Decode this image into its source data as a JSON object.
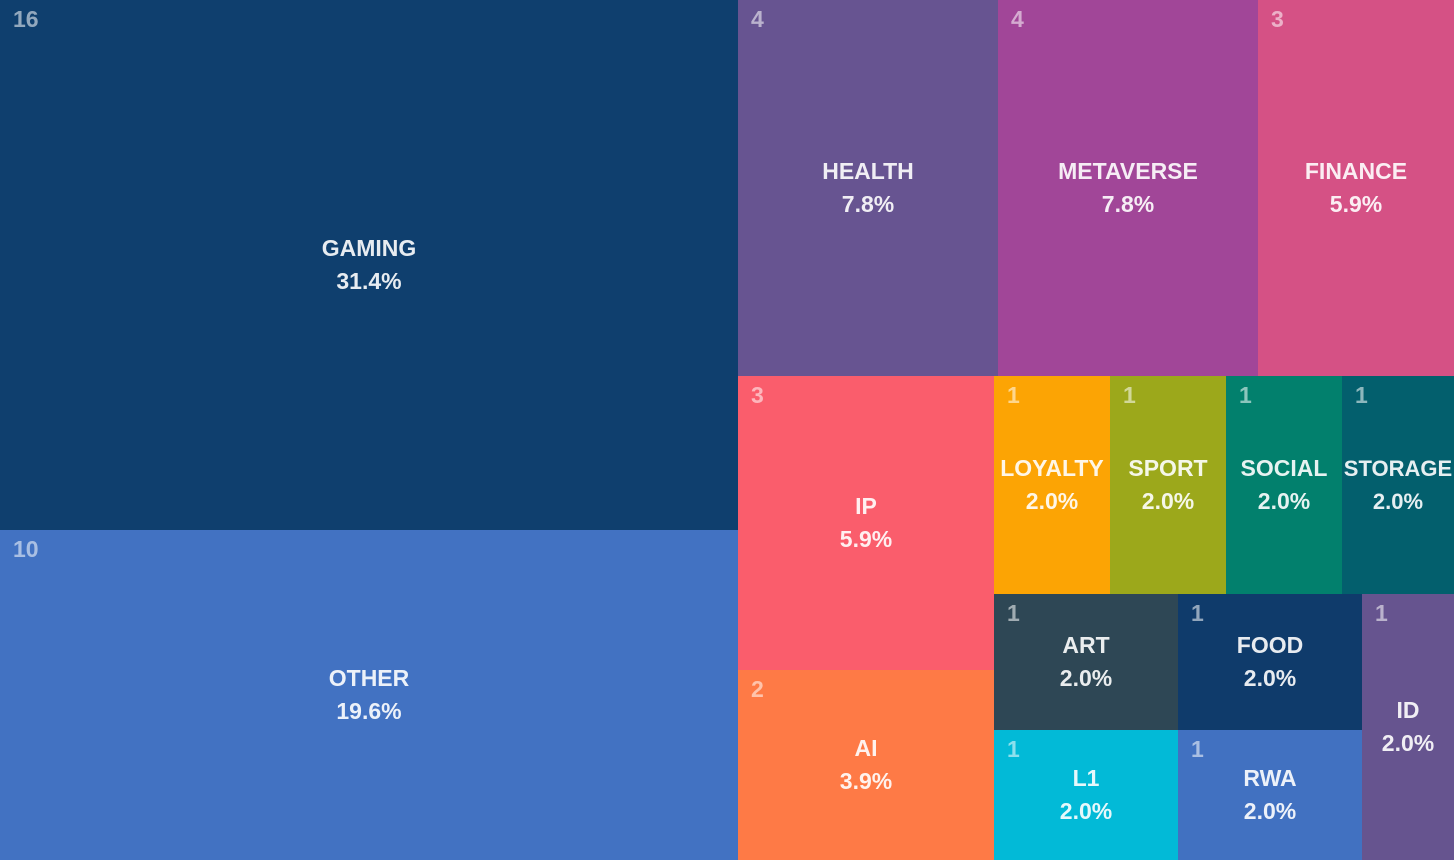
{
  "chart_data": {
    "type": "treemap",
    "items": [
      {
        "name": "GAMING",
        "count": "16",
        "percent": "31.4%",
        "color": "#0f3f6e"
      },
      {
        "name": "OTHER",
        "count": "10",
        "percent": "19.6%",
        "color": "#4272c2"
      },
      {
        "name": "HEALTH",
        "count": "4",
        "percent": "7.8%",
        "color": "#675491"
      },
      {
        "name": "METAVERSE",
        "count": "4",
        "percent": "7.8%",
        "color": "#a14698"
      },
      {
        "name": "FINANCE",
        "count": "3",
        "percent": "5.9%",
        "color": "#d55185"
      },
      {
        "name": "IP",
        "count": "3",
        "percent": "5.9%",
        "color": "#fa5d6c"
      },
      {
        "name": "AI",
        "count": "2",
        "percent": "3.9%",
        "color": "#fe7a46"
      },
      {
        "name": "LOYALTY",
        "count": "1",
        "percent": "2.0%",
        "color": "#fca404"
      },
      {
        "name": "SPORT",
        "count": "1",
        "percent": "2.0%",
        "color": "#9ca81b"
      },
      {
        "name": "SOCIAL",
        "count": "1",
        "percent": "2.0%",
        "color": "#02806d"
      },
      {
        "name": "STORAGE",
        "count": "1",
        "percent": "2.0%",
        "color": "#035f6d"
      },
      {
        "name": "ART",
        "count": "1",
        "percent": "2.0%",
        "color": "#2e4755"
      },
      {
        "name": "FOOD",
        "count": "1",
        "percent": "2.0%",
        "color": "#0f3b6b"
      },
      {
        "name": "ID",
        "count": "1",
        "percent": "2.0%",
        "color": "#66548f"
      },
      {
        "name": "L1",
        "count": "1",
        "percent": "2.0%",
        "color": "#02bad7"
      },
      {
        "name": "RWA",
        "count": "1",
        "percent": "2.0%",
        "color": "#4171c1"
      }
    ]
  }
}
